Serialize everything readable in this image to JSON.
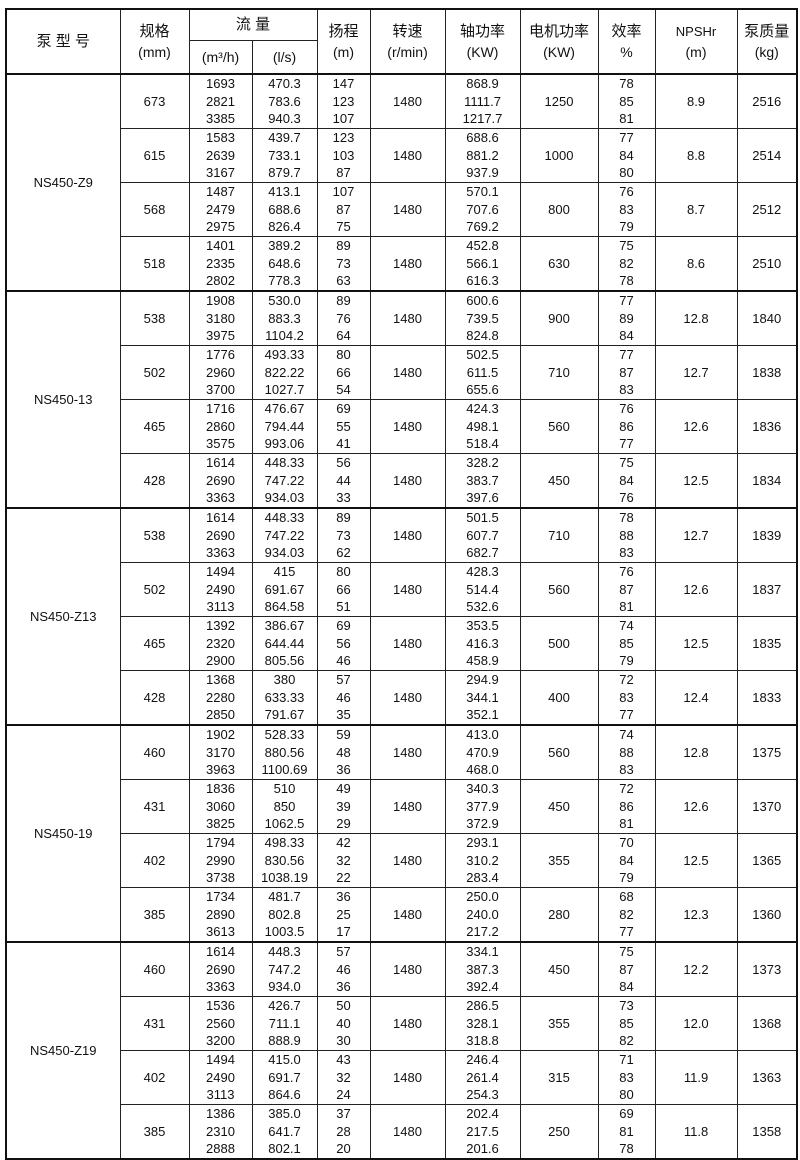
{
  "header": {
    "model": "泵 型 号",
    "spec": "规格",
    "spec_unit": "(mm)",
    "flow": "流 量",
    "flow_unit_m3h": "(m³/h)",
    "flow_unit_ls": "(l/s)",
    "head": "扬程",
    "head_unit": "(m)",
    "speed": "转速",
    "speed_unit": "(r/min)",
    "shaft_power": "轴功率",
    "shaft_power_unit": "(KW)",
    "motor_power": "电机功率",
    "motor_power_unit": "(KW)",
    "efficiency": "效率",
    "efficiency_unit": "%",
    "npshr": "NPSHr",
    "npshr_unit": "(m)",
    "mass": "泵质量",
    "mass_unit": "(kg)"
  },
  "groups": [
    {
      "model": "NS450-Z9",
      "rows": [
        {
          "spec": "673",
          "q_m3h": [
            "1693",
            "2821",
            "3385"
          ],
          "q_ls": [
            "470.3",
            "783.6",
            "940.3"
          ],
          "head": [
            "147",
            "123",
            "107"
          ],
          "speed": "1480",
          "shaft": [
            "868.9",
            "1111.7",
            "1217.7"
          ],
          "motor": "1250",
          "eff": [
            "78",
            "85",
            "81"
          ],
          "npshr": "8.9",
          "mass": "2516"
        },
        {
          "spec": "615",
          "q_m3h": [
            "1583",
            "2639",
            "3167"
          ],
          "q_ls": [
            "439.7",
            "733.1",
            "879.7"
          ],
          "head": [
            "123",
            "103",
            "87"
          ],
          "speed": "1480",
          "shaft": [
            "688.6",
            "881.2",
            "937.9"
          ],
          "motor": "1000",
          "eff": [
            "77",
            "84",
            "80"
          ],
          "npshr": "8.8",
          "mass": "2514"
        },
        {
          "spec": "568",
          "q_m3h": [
            "1487",
            "2479",
            "2975"
          ],
          "q_ls": [
            "413.1",
            "688.6",
            "826.4"
          ],
          "head": [
            "107",
            "87",
            "75"
          ],
          "speed": "1480",
          "shaft": [
            "570.1",
            "707.6",
            "769.2"
          ],
          "motor": "800",
          "eff": [
            "76",
            "83",
            "79"
          ],
          "npshr": "8.7",
          "mass": "2512"
        },
        {
          "spec": "518",
          "q_m3h": [
            "1401",
            "2335",
            "2802"
          ],
          "q_ls": [
            "389.2",
            "648.6",
            "778.3"
          ],
          "head": [
            "89",
            "73",
            "63"
          ],
          "speed": "1480",
          "shaft": [
            "452.8",
            "566.1",
            "616.3"
          ],
          "motor": "630",
          "eff": [
            "75",
            "82",
            "78"
          ],
          "npshr": "8.6",
          "mass": "2510"
        }
      ]
    },
    {
      "model": "NS450-13",
      "rows": [
        {
          "spec": "538",
          "q_m3h": [
            "1908",
            "3180",
            "3975"
          ],
          "q_ls": [
            "530.0",
            "883.3",
            "1104.2"
          ],
          "head": [
            "89",
            "76",
            "64"
          ],
          "speed": "1480",
          "shaft": [
            "600.6",
            "739.5",
            "824.8"
          ],
          "motor": "900",
          "eff": [
            "77",
            "89",
            "84"
          ],
          "npshr": "12.8",
          "mass": "1840"
        },
        {
          "spec": "502",
          "q_m3h": [
            "1776",
            "2960",
            "3700"
          ],
          "q_ls": [
            "493.33",
            "822.22",
            "1027.7"
          ],
          "head": [
            "80",
            "66",
            "54"
          ],
          "speed": "1480",
          "shaft": [
            "502.5",
            "611.5",
            "655.6"
          ],
          "motor": "710",
          "eff": [
            "77",
            "87",
            "83"
          ],
          "npshr": "12.7",
          "mass": "1838"
        },
        {
          "spec": "465",
          "q_m3h": [
            "1716",
            "2860",
            "3575"
          ],
          "q_ls": [
            "476.67",
            "794.44",
            "993.06"
          ],
          "head": [
            "69",
            "55",
            "41"
          ],
          "speed": "1480",
          "shaft": [
            "424.3",
            "498.1",
            "518.4"
          ],
          "motor": "560",
          "eff": [
            "76",
            "86",
            "77"
          ],
          "npshr": "12.6",
          "mass": "1836"
        },
        {
          "spec": "428",
          "q_m3h": [
            "1614",
            "2690",
            "3363"
          ],
          "q_ls": [
            "448.33",
            "747.22",
            "934.03"
          ],
          "head": [
            "56",
            "44",
            "33"
          ],
          "speed": "1480",
          "shaft": [
            "328.2",
            "383.7",
            "397.6"
          ],
          "motor": "450",
          "eff": [
            "75",
            "84",
            "76"
          ],
          "npshr": "12.5",
          "mass": "1834"
        }
      ]
    },
    {
      "model": "NS450-Z13",
      "rows": [
        {
          "spec": "538",
          "q_m3h": [
            "1614",
            "2690",
            "3363"
          ],
          "q_ls": [
            "448.33",
            "747.22",
            "934.03"
          ],
          "head": [
            "89",
            "73",
            "62"
          ],
          "speed": "1480",
          "shaft": [
            "501.5",
            "607.7",
            "682.7"
          ],
          "motor": "710",
          "eff": [
            "78",
            "88",
            "83"
          ],
          "npshr": "12.7",
          "mass": "1839"
        },
        {
          "spec": "502",
          "q_m3h": [
            "1494",
            "2490",
            "3113"
          ],
          "q_ls": [
            "415",
            "691.67",
            "864.58"
          ],
          "head": [
            "80",
            "66",
            "51"
          ],
          "speed": "1480",
          "shaft": [
            "428.3",
            "514.4",
            "532.6"
          ],
          "motor": "560",
          "eff": [
            "76",
            "87",
            "81"
          ],
          "npshr": "12.6",
          "mass": "1837"
        },
        {
          "spec": "465",
          "q_m3h": [
            "1392",
            "2320",
            "2900"
          ],
          "q_ls": [
            "386.67",
            "644.44",
            "805.56"
          ],
          "head": [
            "69",
            "56",
            "46"
          ],
          "speed": "1480",
          "shaft": [
            "353.5",
            "416.3",
            "458.9"
          ],
          "motor": "500",
          "eff": [
            "74",
            "85",
            "79"
          ],
          "npshr": "12.5",
          "mass": "1835"
        },
        {
          "spec": "428",
          "q_m3h": [
            "1368",
            "2280",
            "2850"
          ],
          "q_ls": [
            "380",
            "633.33",
            "791.67"
          ],
          "head": [
            "57",
            "46",
            "35"
          ],
          "speed": "1480",
          "shaft": [
            "294.9",
            "344.1",
            "352.1"
          ],
          "motor": "400",
          "eff": [
            "72",
            "83",
            "77"
          ],
          "npshr": "12.4",
          "mass": "1833"
        }
      ]
    },
    {
      "model": "NS450-19",
      "rows": [
        {
          "spec": "460",
          "q_m3h": [
            "1902",
            "3170",
            "3963"
          ],
          "q_ls": [
            "528.33",
            "880.56",
            "1100.69"
          ],
          "head": [
            "59",
            "48",
            "36"
          ],
          "speed": "1480",
          "shaft": [
            "413.0",
            "470.9",
            "468.0"
          ],
          "motor": "560",
          "eff": [
            "74",
            "88",
            "83"
          ],
          "npshr": "12.8",
          "mass": "1375"
        },
        {
          "spec": "431",
          "q_m3h": [
            "1836",
            "3060",
            "3825"
          ],
          "q_ls": [
            "510",
            "850",
            "1062.5"
          ],
          "head": [
            "49",
            "39",
            "29"
          ],
          "speed": "1480",
          "shaft": [
            "340.3",
            "377.9",
            "372.9"
          ],
          "motor": "450",
          "eff": [
            "72",
            "86",
            "81"
          ],
          "npshr": "12.6",
          "mass": "1370"
        },
        {
          "spec": "402",
          "q_m3h": [
            "1794",
            "2990",
            "3738"
          ],
          "q_ls": [
            "498.33",
            "830.56",
            "1038.19"
          ],
          "head": [
            "42",
            "32",
            "22"
          ],
          "speed": "1480",
          "shaft": [
            "293.1",
            "310.2",
            "283.4"
          ],
          "motor": "355",
          "eff": [
            "70",
            "84",
            "79"
          ],
          "npshr": "12.5",
          "mass": "1365"
        },
        {
          "spec": "385",
          "q_m3h": [
            "1734",
            "2890",
            "3613"
          ],
          "q_ls": [
            "481.7",
            "802.8",
            "1003.5"
          ],
          "head": [
            "36",
            "25",
            "17"
          ],
          "speed": "1480",
          "shaft": [
            "250.0",
            "240.0",
            "217.2"
          ],
          "motor": "280",
          "eff": [
            "68",
            "82",
            "77"
          ],
          "npshr": "12.3",
          "mass": "1360"
        }
      ]
    },
    {
      "model": "NS450-Z19",
      "rows": [
        {
          "spec": "460",
          "q_m3h": [
            "1614",
            "2690",
            "3363"
          ],
          "q_ls": [
            "448.3",
            "747.2",
            "934.0"
          ],
          "head": [
            "57",
            "46",
            "36"
          ],
          "speed": "1480",
          "shaft": [
            "334.1",
            "387.3",
            "392.4"
          ],
          "motor": "450",
          "eff": [
            "75",
            "87",
            "84"
          ],
          "npshr": "12.2",
          "mass": "1373"
        },
        {
          "spec": "431",
          "q_m3h": [
            "1536",
            "2560",
            "3200"
          ],
          "q_ls": [
            "426.7",
            "711.1",
            "888.9"
          ],
          "head": [
            "50",
            "40",
            "30"
          ],
          "speed": "1480",
          "shaft": [
            "286.5",
            "328.1",
            "318.8"
          ],
          "motor": "355",
          "eff": [
            "73",
            "85",
            "82"
          ],
          "npshr": "12.0",
          "mass": "1368"
        },
        {
          "spec": "402",
          "q_m3h": [
            "1494",
            "2490",
            "3113"
          ],
          "q_ls": [
            "415.0",
            "691.7",
            "864.6"
          ],
          "head": [
            "43",
            "32",
            "24"
          ],
          "speed": "1480",
          "shaft": [
            "246.4",
            "261.4",
            "254.3"
          ],
          "motor": "315",
          "eff": [
            "71",
            "83",
            "80"
          ],
          "npshr": "11.9",
          "mass": "1363"
        },
        {
          "spec": "385",
          "q_m3h": [
            "1386",
            "2310",
            "2888"
          ],
          "q_ls": [
            "385.0",
            "641.7",
            "802.1"
          ],
          "head": [
            "37",
            "28",
            "20"
          ],
          "speed": "1480",
          "shaft": [
            "202.4",
            "217.5",
            "201.6"
          ],
          "motor": "250",
          "eff": [
            "69",
            "81",
            "78"
          ],
          "npshr": "11.8",
          "mass": "1358"
        }
      ]
    }
  ]
}
